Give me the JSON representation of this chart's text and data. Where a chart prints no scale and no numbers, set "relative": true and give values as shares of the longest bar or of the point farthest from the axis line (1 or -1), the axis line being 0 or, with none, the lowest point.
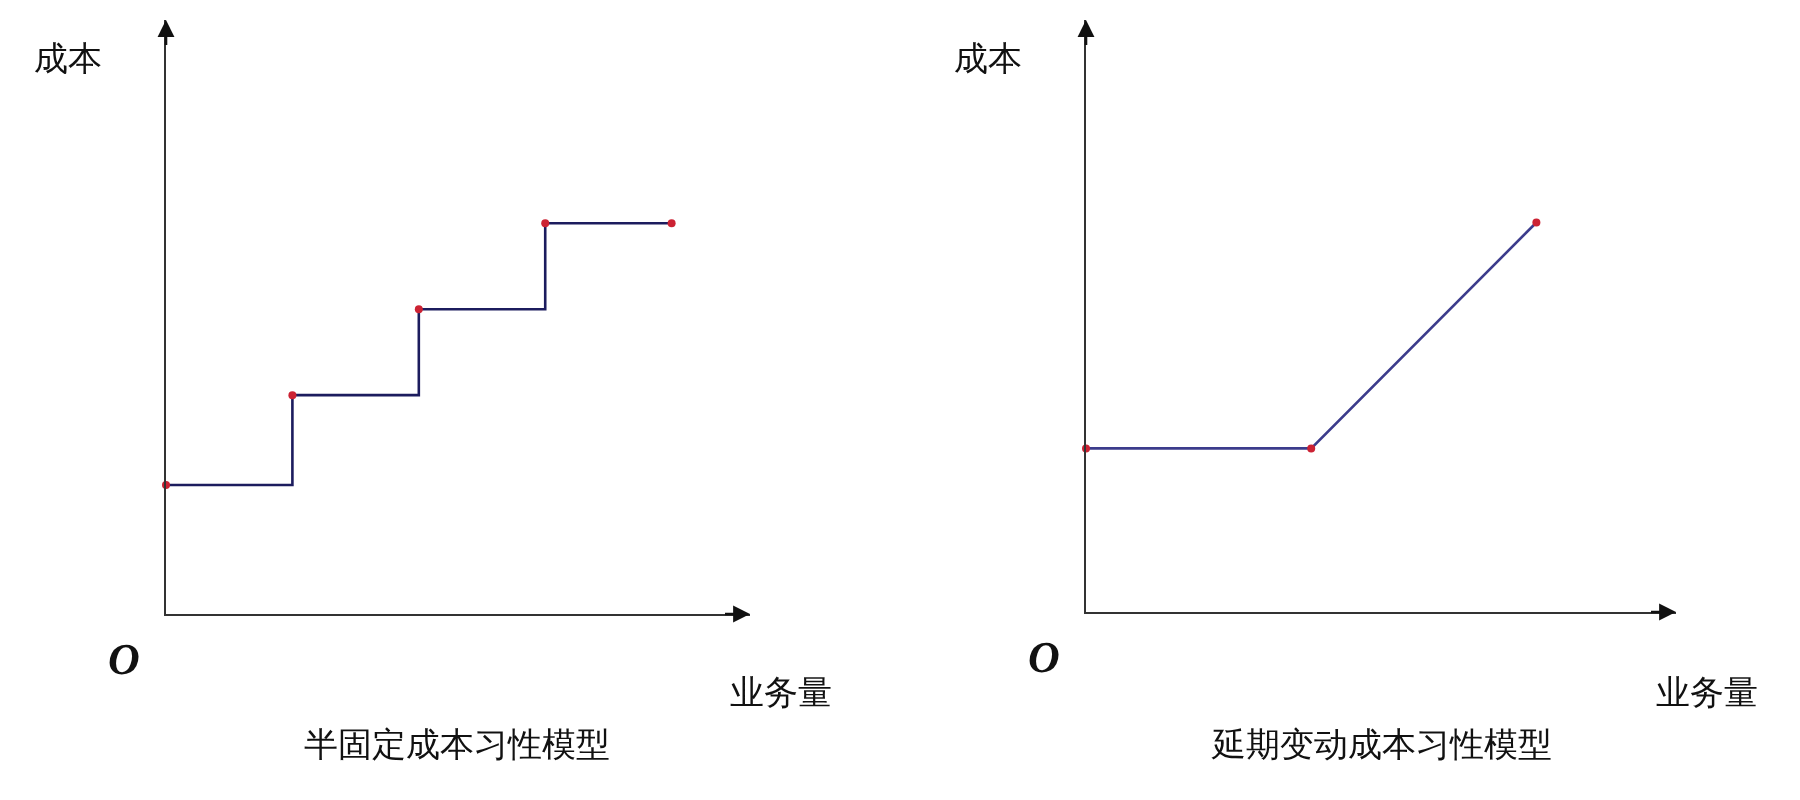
{
  "chart_data": [
    {
      "type": "step",
      "title": "半固定成本习性模型",
      "xlabel": "业务量",
      "ylabel": "成本",
      "annotations": [
        "O"
      ],
      "categories": [
        null,
        null,
        null,
        null,
        null
      ],
      "relative": true,
      "marker": "circle",
      "line_style": "solid",
      "series": [
        {
          "color": "#1c1c5e",
          "colors": [
            "#cc2233",
            "#cc2233",
            "#cc2233",
            "#cc2233",
            "#cc2233"
          ],
          "values": [
            0.33,
            0.56,
            0.78,
            1,
            1
          ]
        }
      ]
    },
    {
      "type": "line",
      "title": "延期变动成本习性模型",
      "xlabel": "业务量",
      "ylabel": "成本",
      "annotations": [
        "O"
      ],
      "categories": [
        null,
        null,
        null
      ],
      "relative": true,
      "marker": "circle",
      "line_style": "solid",
      "series": [
        {
          "color": "#3c3c8c",
          "colors": [
            "#cc2233",
            "#cc2233",
            "#cc2233"
          ],
          "values": [
            0.42,
            0.42,
            1
          ]
        }
      ]
    }
  ]
}
